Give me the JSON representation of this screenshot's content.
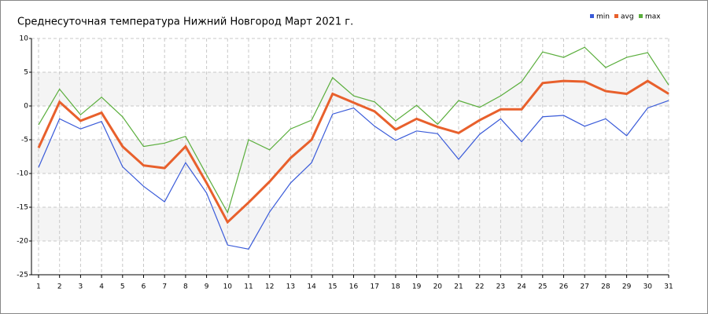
{
  "chart_data": {
    "type": "line",
    "title": "Среднесуточная температура Нижний Новгород  Март 2021 г.",
    "x": [
      1,
      2,
      3,
      4,
      5,
      6,
      7,
      8,
      9,
      10,
      11,
      12,
      13,
      14,
      15,
      16,
      17,
      18,
      19,
      20,
      21,
      22,
      23,
      24,
      25,
      26,
      27,
      28,
      29,
      30,
      31
    ],
    "xlim": [
      1,
      31
    ],
    "ylim": [
      -25,
      10
    ],
    "yticks": [
      -25,
      -20,
      -15,
      -10,
      -5,
      0,
      5,
      10
    ],
    "grid": true,
    "legend": "top-right",
    "series": [
      {
        "name": "min",
        "color": "#3a5bd9",
        "values": [
          -9.1,
          -1.9,
          -3.4,
          -2.3,
          -9.0,
          -11.9,
          -14.2,
          -8.4,
          -12.9,
          -20.6,
          -21.2,
          -15.7,
          -11.4,
          -8.4,
          -1.2,
          -0.3,
          -3.0,
          -5.1,
          -3.7,
          -4.1,
          -7.9,
          -4.2,
          -1.9,
          -5.3,
          -1.6,
          -1.4,
          -3.0,
          -1.9,
          -4.4,
          -0.3,
          0.8
        ]
      },
      {
        "name": "avg",
        "color": "#e8602c",
        "values": [
          -6.2,
          0.6,
          -2.2,
          -1.0,
          -6.0,
          -8.8,
          -9.2,
          -6.0,
          -11.4,
          -17.2,
          -14.3,
          -11.2,
          -7.7,
          -5.0,
          1.8,
          0.5,
          -0.8,
          -3.5,
          -1.9,
          -3.1,
          -4.0,
          -2.1,
          -0.5,
          -0.5,
          3.4,
          3.7,
          3.6,
          2.2,
          1.8,
          3.7,
          1.8
        ]
      },
      {
        "name": "max",
        "color": "#5aae3c",
        "values": [
          -2.8,
          2.5,
          -1.3,
          1.3,
          -1.6,
          -6.0,
          -5.5,
          -4.5,
          -10.2,
          -15.8,
          -5.0,
          -6.5,
          -3.4,
          -2.1,
          4.2,
          1.5,
          0.6,
          -2.2,
          0.1,
          -2.7,
          0.8,
          -0.2,
          1.5,
          3.6,
          8.0,
          7.2,
          8.7,
          5.7,
          7.2,
          7.9,
          3.1
        ]
      }
    ]
  }
}
